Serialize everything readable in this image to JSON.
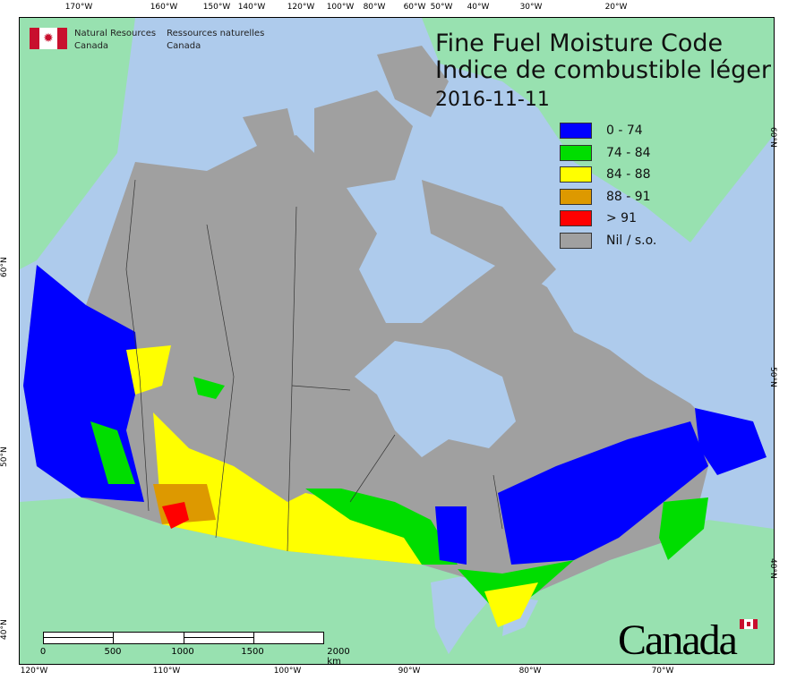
{
  "title": {
    "en": "Fine Fuel Moisture Code",
    "fr": "Indice de combustible léger",
    "date": "2016-11-11"
  },
  "agency": {
    "en_line1": "Natural Resources",
    "en_line2": "Canada",
    "fr_line1": "Ressources naturelles",
    "fr_line2": "Canada"
  },
  "legend": [
    {
      "label": "0 - 74",
      "color": "#0000ff"
    },
    {
      "label": "74 - 84",
      "color": "#00dd00"
    },
    {
      "label": "84 - 88",
      "color": "#ffff00"
    },
    {
      "label": "88 - 91",
      "color": "#dd9900"
    },
    {
      "label": "> 91",
      "color": "#ff0000"
    },
    {
      "label": "Nil / s.o.",
      "color": "#a0a0a0"
    }
  ],
  "axes": {
    "top": [
      "170°W",
      "160°W",
      "150°W",
      "140°W",
      "120°W",
      "100°W",
      "80°W",
      "60°W",
      "50°W",
      "40°W",
      "30°W",
      "20°W"
    ],
    "bottom": [
      "120°W",
      "110°W",
      "100°W",
      "90°W",
      "80°W",
      "70°W"
    ],
    "left": [
      "60°N",
      "50°N",
      "40°N"
    ],
    "right": [
      "60°N",
      "50°N",
      "40°N"
    ]
  },
  "scale_bar": {
    "labels": [
      "0",
      "500",
      "1000",
      "1500",
      "2000 km"
    ]
  },
  "wordmark": "Canada",
  "colors": {
    "ocean": "#aecbec",
    "foreign_land": "#98e1b0",
    "nil": "#a0a0a0"
  }
}
